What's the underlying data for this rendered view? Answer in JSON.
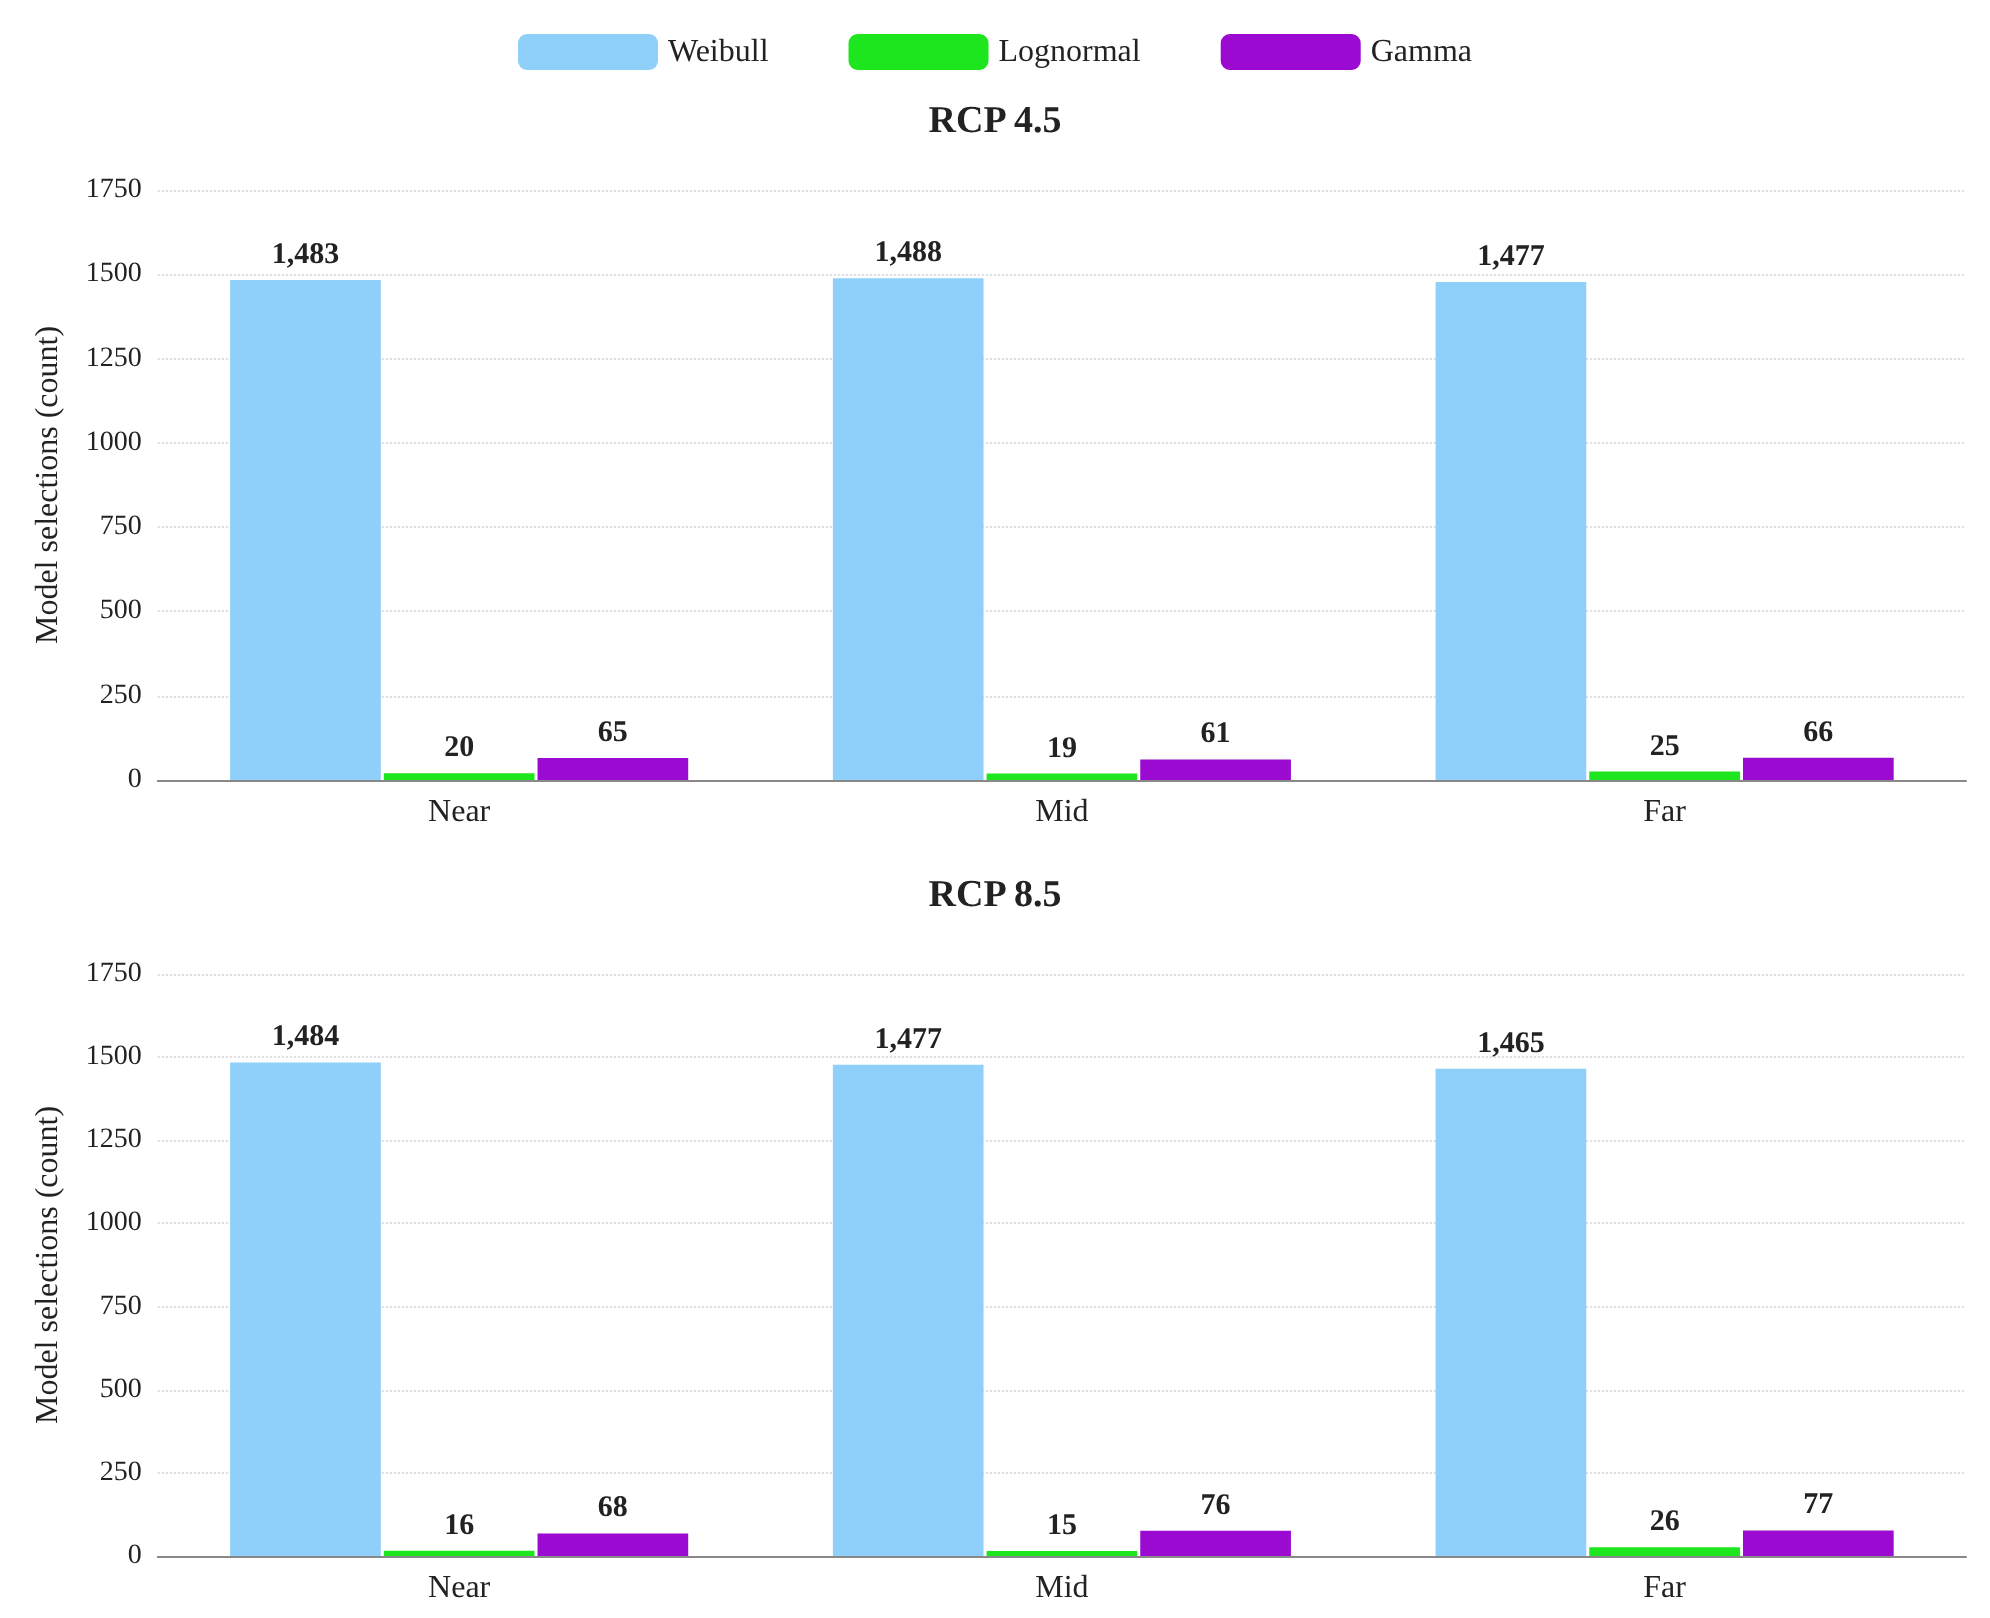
{
  "chart_data": [
    {
      "type": "bar",
      "title": "RCP 4.5",
      "ylabel": "Model selections (count)",
      "categories": [
        "Near",
        "Mid",
        "Far"
      ],
      "ylim": [
        0,
        1750
      ],
      "yticks": [
        0,
        250,
        500,
        750,
        1000,
        1250,
        1500,
        1750
      ],
      "grid": "y",
      "legend": "top",
      "series": [
        {
          "name": "Weibull",
          "color": "#8fd0fa",
          "values": [
            1483,
            1488,
            1477
          ],
          "value_labels": [
            "1,483",
            "1,488",
            "1,477"
          ]
        },
        {
          "name": "Lognormal",
          "color": "#1ee61e",
          "values": [
            20,
            19,
            25
          ],
          "value_labels": [
            "20",
            "19",
            "25"
          ]
        },
        {
          "name": "Gamma",
          "color": "#9a0ad0",
          "values": [
            65,
            61,
            66
          ],
          "value_labels": [
            "65",
            "61",
            "66"
          ]
        }
      ]
    },
    {
      "type": "bar",
      "title": "RCP 8.5",
      "ylabel": "Model selections (count)",
      "categories": [
        "Near",
        "Mid",
        "Far"
      ],
      "ylim": [
        0,
        1750
      ],
      "yticks": [
        0,
        250,
        500,
        750,
        1000,
        1250,
        1500,
        1750
      ],
      "grid": "y",
      "series": [
        {
          "color": "#8fd0fa",
          "values": [
            1484,
            1477,
            1465
          ],
          "value_labels": [
            "1,484",
            "1,477",
            "1,465"
          ]
        },
        {
          "color": "#1ee61e",
          "values": [
            16,
            15,
            26
          ],
          "value_labels": [
            "16",
            "15",
            "26"
          ]
        },
        {
          "color": "#9a0ad0",
          "values": [
            68,
            76,
            77
          ],
          "value_labels": [
            "68",
            "76",
            "77"
          ]
        }
      ]
    }
  ]
}
